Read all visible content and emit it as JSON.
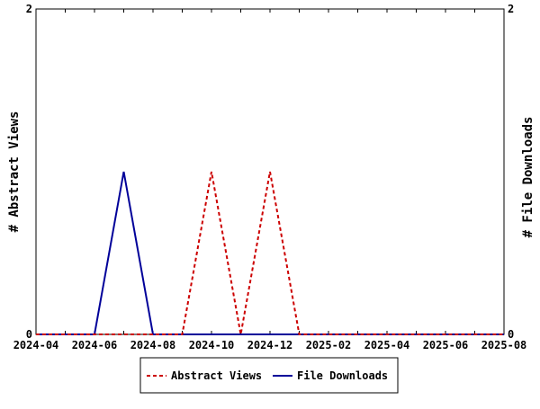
{
  "chart_data": {
    "type": "line",
    "title": "",
    "x": [
      "2024-04",
      "2024-05",
      "2024-06",
      "2024-07",
      "2024-08",
      "2024-09",
      "2024-10",
      "2024-11",
      "2024-12",
      "2025-01",
      "2025-02",
      "2025-03",
      "2025-04",
      "2025-05",
      "2025-06",
      "2025-07",
      "2025-08"
    ],
    "xticks": [
      "2024-04",
      "2024-06",
      "2024-08",
      "2024-10",
      "2024-12",
      "2025-02",
      "2025-04",
      "2025-06",
      "2025-08"
    ],
    "ylabel_left": "# Abstract Views",
    "ylabel_right": "# File Downloads",
    "ylim_left": [
      0,
      2
    ],
    "ylim_right": [
      0,
      2
    ],
    "yticks_left": [
      "0",
      "2"
    ],
    "yticks_right": [
      "0",
      "2"
    ],
    "grid": false,
    "legend_placement": "bottom-center",
    "series": [
      {
        "name": "Abstract Views",
        "axis": "left",
        "color": "#cc0000",
        "dash": "dashed",
        "values": [
          0,
          0,
          0,
          0,
          0,
          0,
          1,
          0,
          1,
          0,
          0,
          0,
          0,
          0,
          0,
          0,
          0
        ]
      },
      {
        "name": "File Downloads",
        "axis": "right",
        "color": "#000099",
        "dash": "solid",
        "values": [
          0,
          0,
          0,
          1,
          0,
          0,
          0,
          0,
          0,
          0,
          0,
          0,
          0,
          0,
          0,
          0,
          0
        ]
      }
    ]
  }
}
